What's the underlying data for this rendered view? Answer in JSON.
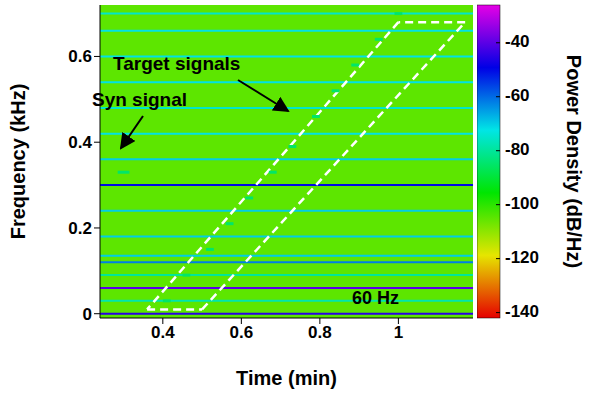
{
  "chart_data": {
    "type": "spectrogram",
    "xlabel": "Time (min)",
    "ylabel": "Frequency (kHz)",
    "xlim": [
      0.24,
      1.19
    ],
    "xticks": [
      0.4,
      0.6,
      0.8,
      1
    ],
    "ylim": [
      -0.01,
      0.72
    ],
    "yticks": [
      0,
      0.2,
      0.4,
      0.6
    ],
    "colorbar": {
      "label": "Power Density (dB/Hz)",
      "range": [
        -142,
        -26
      ],
      "ticks": [
        -40,
        -60,
        -80,
        -100,
        -120,
        -140
      ]
    },
    "background_power": -105,
    "tones": [
      {
        "frequency": 0,
        "power": -45
      },
      {
        "frequency": 0.03,
        "power": -78
      },
      {
        "frequency": 0.06,
        "power": -40
      },
      {
        "frequency": 0.09,
        "power": -80
      },
      {
        "frequency": 0.12,
        "power": -62
      },
      {
        "frequency": 0.135,
        "power": -70
      },
      {
        "frequency": 0.18,
        "power": -70
      },
      {
        "frequency": 0.24,
        "power": -70
      },
      {
        "frequency": 0.3,
        "power": -50
      },
      {
        "frequency": 0.36,
        "power": -70
      },
      {
        "frequency": 0.42,
        "power": -72
      },
      {
        "frequency": 0.48,
        "power": -75
      },
      {
        "frequency": 0.54,
        "power": -72
      },
      {
        "frequency": 0.6,
        "power": -72
      },
      {
        "frequency": 0.66,
        "power": -72
      },
      {
        "frequency": 0.7,
        "power": -75
      }
    ],
    "syn_signal": [
      {
        "time": 0.3,
        "frequency": 0.33,
        "power": -85,
        "duration": 0.03
      }
    ],
    "target_signals": [
      {
        "time": 0.41,
        "frequency": 0.03,
        "power": -85,
        "duration": 0.02
      },
      {
        "time": 0.46,
        "frequency": 0.09,
        "power": -85,
        "duration": 0.02
      },
      {
        "time": 0.52,
        "frequency": 0.15,
        "power": -85,
        "duration": 0.02
      },
      {
        "time": 0.57,
        "frequency": 0.21,
        "power": -85,
        "duration": 0.02
      },
      {
        "time": 0.62,
        "frequency": 0.27,
        "power": -85,
        "duration": 0.02
      },
      {
        "time": 0.68,
        "frequency": 0.33,
        "power": -85,
        "duration": 0.02
      },
      {
        "time": 0.73,
        "frequency": 0.39,
        "power": -85,
        "duration": 0.02
      },
      {
        "time": 0.79,
        "frequency": 0.46,
        "power": -85,
        "duration": 0.02
      },
      {
        "time": 0.84,
        "frequency": 0.52,
        "power": -85,
        "duration": 0.02
      },
      {
        "time": 0.89,
        "frequency": 0.58,
        "power": -85,
        "duration": 0.02
      },
      {
        "time": 0.95,
        "frequency": 0.64,
        "power": -85,
        "duration": 0.02
      },
      {
        "time": 1.0,
        "frequency": 0.7,
        "power": -85,
        "duration": 0.02
      }
    ],
    "target_region": [
      [
        0.36,
        0.01
      ],
      [
        0.5,
        0.01
      ],
      [
        1.17,
        0.68
      ],
      [
        1.0,
        0.68
      ]
    ],
    "annotations": [
      "Target signals",
      "Syn signal",
      "60 Hz"
    ]
  }
}
